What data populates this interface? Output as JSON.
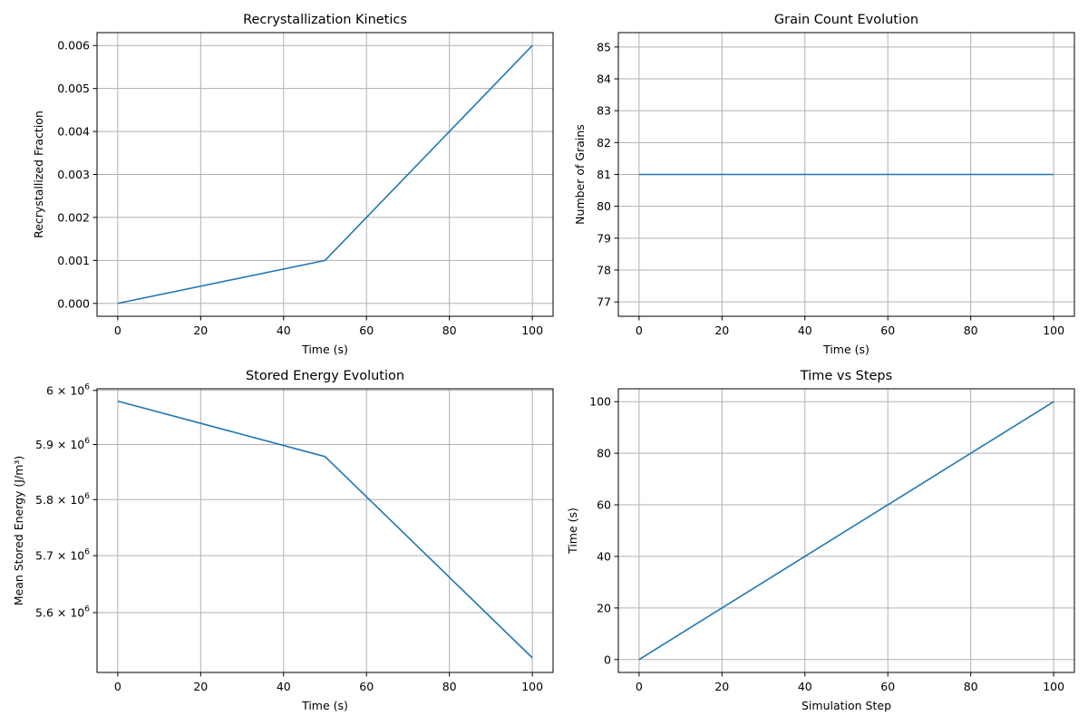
{
  "chart_data": [
    {
      "type": "line",
      "title": "Recrystallization Kinetics",
      "xlabel": "Time (s)",
      "ylabel": "Recrystallized Fraction",
      "x": [
        0,
        50,
        100
      ],
      "y": [
        0.0,
        0.001,
        0.006
      ],
      "xlim": [
        -5,
        105
      ],
      "ylim": [
        -0.0003,
        0.0063
      ],
      "xticks": [
        0,
        20,
        40,
        60,
        80,
        100
      ],
      "xtick_labels": [
        "0",
        "20",
        "40",
        "60",
        "80",
        "100"
      ],
      "yticks": [
        0,
        0.001,
        0.002,
        0.003,
        0.004,
        0.005,
        0.006
      ],
      "ytick_labels": [
        "0.000",
        "0.001",
        "0.002",
        "0.003",
        "0.004",
        "0.005",
        "0.006"
      ],
      "yscale": "linear",
      "grid": true,
      "color": "#1f77b4"
    },
    {
      "type": "line",
      "title": "Grain Count Evolution",
      "xlabel": "Time (s)",
      "ylabel": "Number of Grains",
      "x": [
        0,
        50,
        100
      ],
      "y": [
        81,
        81,
        81
      ],
      "xlim": [
        -5,
        105
      ],
      "ylim": [
        76.55,
        85.45
      ],
      "xticks": [
        0,
        20,
        40,
        60,
        80,
        100
      ],
      "xtick_labels": [
        "0",
        "20",
        "40",
        "60",
        "80",
        "100"
      ],
      "yticks": [
        77,
        78,
        79,
        80,
        81,
        82,
        83,
        84,
        85
      ],
      "ytick_labels": [
        "77",
        "78",
        "79",
        "80",
        "81",
        "82",
        "83",
        "84",
        "85"
      ],
      "yscale": "linear",
      "grid": true,
      "color": "#1f77b4"
    },
    {
      "type": "line",
      "title": "Stored Energy Evolution",
      "xlabel": "Time (s)",
      "ylabel": "Mean Stored Energy (J/m³)",
      "x": [
        0,
        50,
        100
      ],
      "y": [
        5980000,
        5878000,
        5522000
      ],
      "xlim": [
        -5,
        105
      ],
      "ylim": [
        5497000,
        6003000
      ],
      "xticks": [
        0,
        20,
        40,
        60,
        80,
        100
      ],
      "xtick_labels": [
        "0",
        "20",
        "40",
        "60",
        "80",
        "100"
      ],
      "yticks": [
        5600000,
        5700000,
        5800000,
        5900000,
        6000000
      ],
      "ytick_labels": [
        {
          "mantissa": "5.6 × 10",
          "exp": "6"
        },
        {
          "mantissa": "5.7 × 10",
          "exp": "6"
        },
        {
          "mantissa": "5.8 × 10",
          "exp": "6"
        },
        {
          "mantissa": "5.9 × 10",
          "exp": "6"
        },
        {
          "mantissa": "6 × 10",
          "exp": "6"
        }
      ],
      "yscale": "log",
      "grid": true,
      "color": "#1f77b4"
    },
    {
      "type": "line",
      "title": "Time vs Steps",
      "xlabel": "Simulation Step",
      "ylabel": "Time (s)",
      "x": [
        0,
        100
      ],
      "y": [
        0,
        100
      ],
      "xlim": [
        -5,
        105
      ],
      "ylim": [
        -5,
        105
      ],
      "xticks": [
        0,
        20,
        40,
        60,
        80,
        100
      ],
      "xtick_labels": [
        "0",
        "20",
        "40",
        "60",
        "80",
        "100"
      ],
      "yticks": [
        0,
        20,
        40,
        60,
        80,
        100
      ],
      "ytick_labels": [
        "0",
        "20",
        "40",
        "60",
        "80",
        "100"
      ],
      "yscale": "linear",
      "grid": true,
      "color": "#1f77b4"
    }
  ]
}
